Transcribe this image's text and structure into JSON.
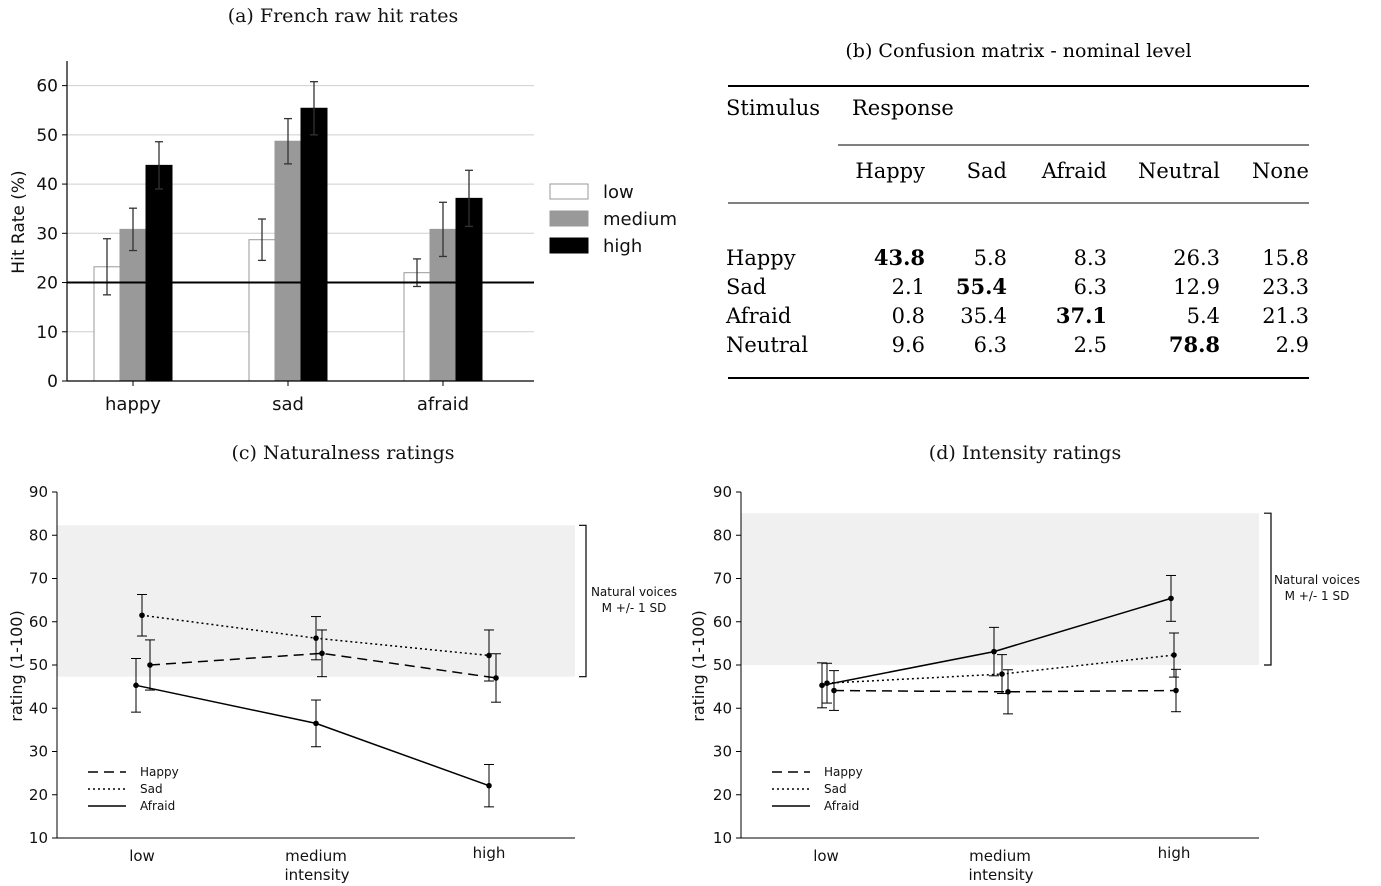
{
  "chart_data": [
    {
      "id": "a",
      "type": "bar",
      "title": "(a) French raw hit rates",
      "ylabel": "Hit Rate (%)",
      "ylim": [
        0,
        65
      ],
      "yticks": [
        0,
        10,
        20,
        30,
        40,
        50,
        60
      ],
      "categories": [
        "happy",
        "sad",
        "afraid"
      ],
      "reference_line": 20,
      "legend_position": "right",
      "series": [
        {
          "name": "low",
          "color": "#ffffff",
          "values": [
            23.2,
            28.7,
            22.0
          ],
          "errors": [
            5.7,
            4.2,
            2.8
          ]
        },
        {
          "name": "medium",
          "color": "#999999",
          "values": [
            30.8,
            48.7,
            30.8
          ],
          "errors": [
            4.3,
            4.6,
            5.5
          ]
        },
        {
          "name": "high",
          "color": "#000000",
          "values": [
            43.8,
            55.4,
            37.1
          ],
          "errors": [
            4.8,
            5.4,
            5.7
          ]
        }
      ]
    },
    {
      "id": "b",
      "type": "table",
      "title": "(b) Confusion matrix - nominal level",
      "row_header": "Stimulus",
      "column_group": "Response",
      "columns": [
        "Happy",
        "Sad",
        "Afraid",
        "Neutral",
        "None"
      ],
      "rows": [
        {
          "label": "Happy",
          "values": [
            "43.8",
            "5.8",
            "8.3",
            "26.3",
            "15.8"
          ],
          "bold_index": 0
        },
        {
          "label": "Sad",
          "values": [
            "2.1",
            "55.4",
            "6.3",
            "12.9",
            "23.3"
          ],
          "bold_index": 1
        },
        {
          "label": "Afraid",
          "values": [
            "0.8",
            "35.4",
            "37.1",
            "5.4",
            "21.3"
          ],
          "bold_index": 2
        },
        {
          "label": "Neutral",
          "values": [
            "9.6",
            "6.3",
            "2.5",
            "78.8",
            "2.9"
          ],
          "bold_index": 3
        }
      ]
    },
    {
      "id": "c",
      "type": "line",
      "title": "(c) Naturalness ratings",
      "ylabel": "rating (1-100)",
      "xlabel": "intensity",
      "ylim": [
        10,
        90
      ],
      "yticks": [
        10,
        20,
        30,
        40,
        50,
        60,
        70,
        80,
        90
      ],
      "categories": [
        "low",
        "medium",
        "high"
      ],
      "band": {
        "low": 47.3,
        "high": 82.3,
        "label_lines": [
          "Natural voices",
          "M +/- 1 SD"
        ]
      },
      "legend_position": "lower-left",
      "series": [
        {
          "name": "Happy",
          "dash": "dashed",
          "values": [
            50.0,
            52.7,
            47.0
          ],
          "errors": [
            5.8,
            5.4,
            5.6
          ]
        },
        {
          "name": "Sad",
          "dash": "dotted",
          "values": [
            61.5,
            56.2,
            52.2
          ],
          "errors": [
            4.8,
            5.0,
            5.9
          ]
        },
        {
          "name": "Afraid",
          "dash": "solid",
          "values": [
            45.3,
            36.5,
            22.1
          ],
          "errors": [
            6.2,
            5.4,
            4.9
          ]
        }
      ]
    },
    {
      "id": "d",
      "type": "line",
      "title": "(d) Intensity ratings",
      "ylabel": "rating (1-100)",
      "xlabel": "intensity",
      "ylim": [
        10,
        90
      ],
      "yticks": [
        10,
        20,
        30,
        40,
        50,
        60,
        70,
        80,
        90
      ],
      "categories": [
        "low",
        "medium",
        "high"
      ],
      "band": {
        "low": 50.0,
        "high": 85.1,
        "label_lines": [
          "Natural voices",
          "M +/- 1 SD"
        ]
      },
      "legend_position": "lower-left",
      "series": [
        {
          "name": "Happy",
          "dash": "dashed",
          "values": [
            44.1,
            43.8,
            44.1
          ],
          "errors": [
            4.6,
            5.1,
            4.9
          ]
        },
        {
          "name": "Sad",
          "dash": "dotted",
          "values": [
            45.8,
            47.9,
            52.3
          ],
          "errors": [
            4.6,
            4.5,
            5.1
          ]
        },
        {
          "name": "Afraid",
          "dash": "solid",
          "values": [
            45.3,
            53.1,
            65.4
          ],
          "errors": [
            5.2,
            5.6,
            5.3
          ]
        }
      ]
    }
  ]
}
